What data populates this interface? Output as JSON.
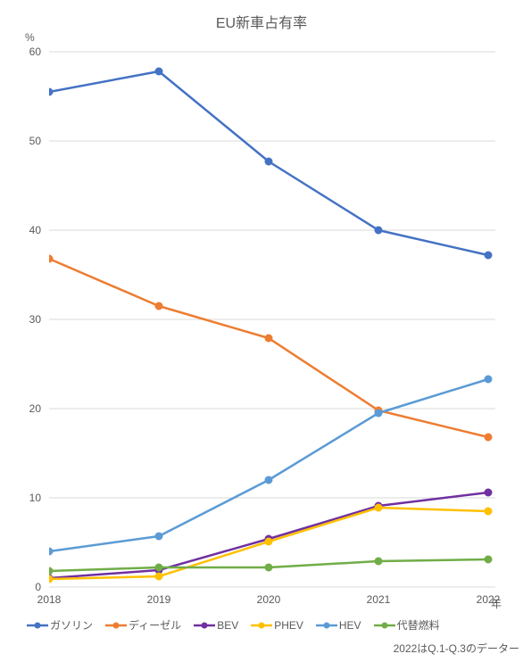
{
  "chart": {
    "type": "line",
    "title": "EU新車占有率",
    "y_unit": "%",
    "x_unit": "年",
    "background_color": "#ffffff",
    "grid_color": "#d9d9d9",
    "axis_color": "#d9d9d9",
    "text_color": "#595959",
    "title_fontsize": 16,
    "label_fontsize": 12,
    "ylim": [
      0,
      60
    ],
    "ytick_step": 10,
    "yticks": [
      0,
      10,
      20,
      30,
      40,
      50,
      60
    ],
    "categories": [
      "2018",
      "2019",
      "2020",
      "2021",
      "2022"
    ],
    "marker_radius": 4,
    "line_width": 2.5,
    "series": [
      {
        "name": "ガソリン",
        "color": "#4472c4",
        "values": [
          55.5,
          57.8,
          47.7,
          40.0,
          37.2
        ]
      },
      {
        "name": "ディーゼル",
        "color": "#ed7d31",
        "values": [
          36.8,
          31.5,
          27.9,
          19.8,
          16.8
        ]
      },
      {
        "name": "BEV",
        "color": "#7030a0",
        "values": [
          1.0,
          1.9,
          5.4,
          9.1,
          10.6
        ]
      },
      {
        "name": "PHEV",
        "color": "#ffc000",
        "values": [
          0.9,
          1.2,
          5.1,
          8.9,
          8.5
        ]
      },
      {
        "name": "HEV",
        "color": "#5b9bd5",
        "values": [
          4.0,
          5.7,
          12.0,
          19.5,
          23.3
        ]
      },
      {
        "name": "代替燃料",
        "color": "#70ad47",
        "values": [
          1.8,
          2.2,
          2.2,
          2.9,
          3.1
        ]
      }
    ],
    "note": "2022はQ.1-Q.3のデーター"
  }
}
